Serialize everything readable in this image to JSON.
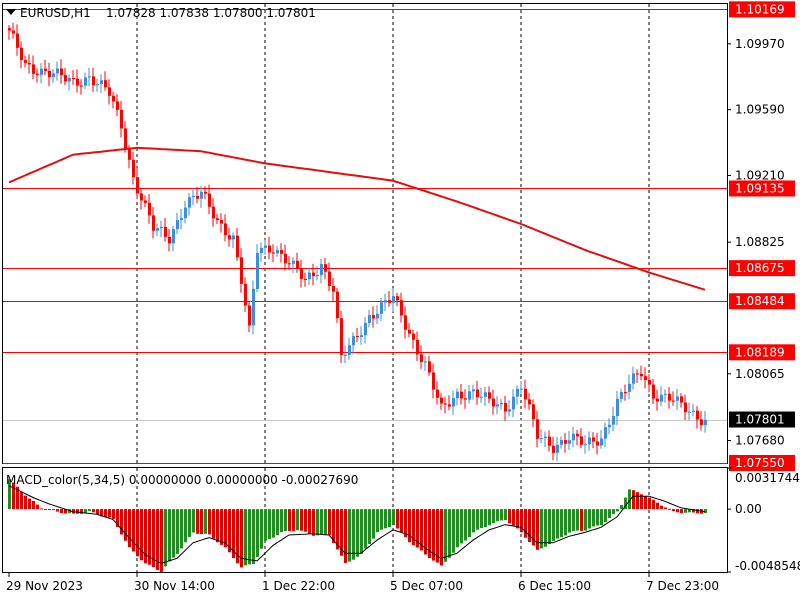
{
  "header": {
    "symbol": "EURUSD,H1",
    "ohlc": "1.07828 1.07838 1.07800 1.07801"
  },
  "sub_header": {
    "label": "MACD_color(5,34,5) 0.00000000 0.00000000 -0.00027690"
  },
  "colors": {
    "up": "#3c8edc",
    "down": "#ff0000",
    "ma": "#e01010",
    "hline": "#ff0000",
    "hist_up": "#228b22",
    "hist_down": "#e00000",
    "signal": "#000000",
    "grid": "#000000",
    "current": "#c8c8c8"
  },
  "chart_data": [
    {
      "type": "candlestick",
      "name": "price",
      "ylim": [
        1.0755,
        1.102
      ],
      "y_ticks": [
        "1.09970",
        "1.09590",
        "1.09210",
        "1.08825",
        "1.08065",
        "1.07680"
      ],
      "x_ticks": [
        "29 Nov 2023",
        "30 Nov 14:00",
        "1 Dec 22:00",
        "5 Dec 07:00",
        "6 Dec 15:00",
        "7 Dec 23:00"
      ],
      "x_tick_index": [
        0,
        32,
        64,
        96,
        128,
        160
      ],
      "levels": [
        {
          "value": 1.10169,
          "label": "1.10169"
        },
        {
          "value": 1.09135,
          "label": "1.09135"
        },
        {
          "value": 1.08675,
          "label": "1.08675"
        },
        {
          "value": 1.08484,
          "label": "1.08484"
        },
        {
          "value": 1.08189,
          "label": "1.08189"
        },
        {
          "value": 1.0755,
          "label": "1.07550"
        }
      ],
      "current": {
        "value": 1.07801,
        "label": "1.07801"
      },
      "ma_anchors": [
        [
          0,
          1.0917
        ],
        [
          16,
          1.0933
        ],
        [
          32,
          1.0937
        ],
        [
          48,
          1.0935
        ],
        [
          64,
          1.0928
        ],
        [
          80,
          1.0923
        ],
        [
          96,
          1.0918
        ],
        [
          112,
          1.0906
        ],
        [
          128,
          1.0893
        ],
        [
          144,
          1.0878
        ],
        [
          160,
          1.0865
        ],
        [
          174,
          1.0855
        ]
      ],
      "close_anchors": [
        [
          0,
          1.1003
        ],
        [
          4,
          1.0985
        ],
        [
          10,
          1.098
        ],
        [
          16,
          1.0975
        ],
        [
          20,
          1.0978
        ],
        [
          25,
          1.0968
        ],
        [
          28,
          1.095
        ],
        [
          31,
          1.092
        ],
        [
          36,
          1.089
        ],
        [
          40,
          1.0885
        ],
        [
          44,
          1.0905
        ],
        [
          48,
          1.091
        ],
        [
          52,
          1.0895
        ],
        [
          56,
          1.0885
        ],
        [
          58,
          1.086
        ],
        [
          60,
          1.083
        ],
        [
          62,
          1.0878
        ],
        [
          66,
          1.088
        ],
        [
          70,
          1.087
        ],
        [
          74,
          1.086
        ],
        [
          78,
          1.087
        ],
        [
          81,
          1.0855
        ],
        [
          83,
          1.0815
        ],
        [
          86,
          1.0825
        ],
        [
          90,
          1.084
        ],
        [
          96,
          1.085
        ],
        [
          100,
          1.083
        ],
        [
          104,
          1.0812
        ],
        [
          108,
          1.0785
        ],
        [
          112,
          1.0795
        ],
        [
          116,
          1.0796
        ],
        [
          120,
          1.079
        ],
        [
          124,
          1.0787
        ],
        [
          128,
          1.08
        ],
        [
          132,
          1.077
        ],
        [
          136,
          1.0765
        ],
        [
          140,
          1.077
        ],
        [
          144,
          1.0765
        ],
        [
          148,
          1.077
        ],
        [
          152,
          1.079
        ],
        [
          155,
          1.08
        ],
        [
          158,
          1.0808
        ],
        [
          161,
          1.0795
        ],
        [
          165,
          1.0792
        ],
        [
          170,
          1.0785
        ],
        [
          174,
          1.078
        ]
      ]
    },
    {
      "type": "histogram",
      "name": "MACD_color(5,34,5)",
      "ylim": [
        -0.004854,
        0.003174
      ],
      "y_ticks": [
        "0.0031744",
        "0.00",
        "-0.0048548"
      ],
      "hist_anchors": [
        [
          0,
          0.0023
        ],
        [
          5,
          0.0008
        ],
        [
          8,
          0.0001
        ],
        [
          12,
          -0.0002
        ],
        [
          16,
          -0.0004
        ],
        [
          20,
          -0.0002
        ],
        [
          26,
          -0.0008
        ],
        [
          30,
          -0.003
        ],
        [
          34,
          -0.0042
        ],
        [
          38,
          -0.0048
        ],
        [
          42,
          -0.0034
        ],
        [
          46,
          -0.0018
        ],
        [
          50,
          -0.002
        ],
        [
          54,
          -0.003
        ],
        [
          58,
          -0.0045
        ],
        [
          61,
          -0.0042
        ],
        [
          64,
          -0.0025
        ],
        [
          68,
          -0.0018
        ],
        [
          72,
          -0.0016
        ],
        [
          76,
          -0.002
        ],
        [
          80,
          -0.002
        ],
        [
          84,
          -0.0042
        ],
        [
          88,
          -0.0035
        ],
        [
          92,
          -0.0018
        ],
        [
          96,
          -0.0012
        ],
        [
          100,
          -0.0025
        ],
        [
          104,
          -0.0035
        ],
        [
          108,
          -0.0044
        ],
        [
          112,
          -0.003
        ],
        [
          116,
          -0.0018
        ],
        [
          120,
          -0.0012
        ],
        [
          124,
          -0.0008
        ],
        [
          128,
          -0.0018
        ],
        [
          132,
          -0.0032
        ],
        [
          136,
          -0.0025
        ],
        [
          140,
          -0.0018
        ],
        [
          144,
          -0.0016
        ],
        [
          148,
          -0.0012
        ],
        [
          152,
          -0.0002
        ],
        [
          155,
          0.0015
        ],
        [
          158,
          0.0012
        ],
        [
          162,
          0.0005
        ],
        [
          166,
          -0.0002
        ],
        [
          170,
          -0.0003
        ],
        [
          174,
          -0.0003
        ]
      ],
      "signal_anchors": [
        [
          0,
          0.0018
        ],
        [
          6,
          0.0009
        ],
        [
          10,
          0.0004
        ],
        [
          16,
          -0.0002
        ],
        [
          22,
          -0.0004
        ],
        [
          26,
          -0.0008
        ],
        [
          30,
          -0.0022
        ],
        [
          34,
          -0.0035
        ],
        [
          38,
          -0.0042
        ],
        [
          42,
          -0.0038
        ],
        [
          46,
          -0.0026
        ],
        [
          50,
          -0.0022
        ],
        [
          54,
          -0.0026
        ],
        [
          58,
          -0.0038
        ],
        [
          62,
          -0.004
        ],
        [
          66,
          -0.0028
        ],
        [
          70,
          -0.002
        ],
        [
          76,
          -0.0019
        ],
        [
          80,
          -0.002
        ],
        [
          84,
          -0.0034
        ],
        [
          88,
          -0.0034
        ],
        [
          92,
          -0.0024
        ],
        [
          96,
          -0.0016
        ],
        [
          100,
          -0.002
        ],
        [
          104,
          -0.003
        ],
        [
          108,
          -0.0038
        ],
        [
          112,
          -0.0034
        ],
        [
          116,
          -0.0024
        ],
        [
          120,
          -0.0016
        ],
        [
          124,
          -0.0012
        ],
        [
          128,
          -0.0014
        ],
        [
          132,
          -0.0026
        ],
        [
          136,
          -0.0026
        ],
        [
          140,
          -0.0021
        ],
        [
          144,
          -0.0018
        ],
        [
          148,
          -0.0014
        ],
        [
          152,
          -0.0006
        ],
        [
          156,
          0.001
        ],
        [
          160,
          0.001
        ],
        [
          164,
          0.0006
        ],
        [
          168,
          0.0001
        ],
        [
          174,
          -0.0002
        ]
      ]
    }
  ]
}
